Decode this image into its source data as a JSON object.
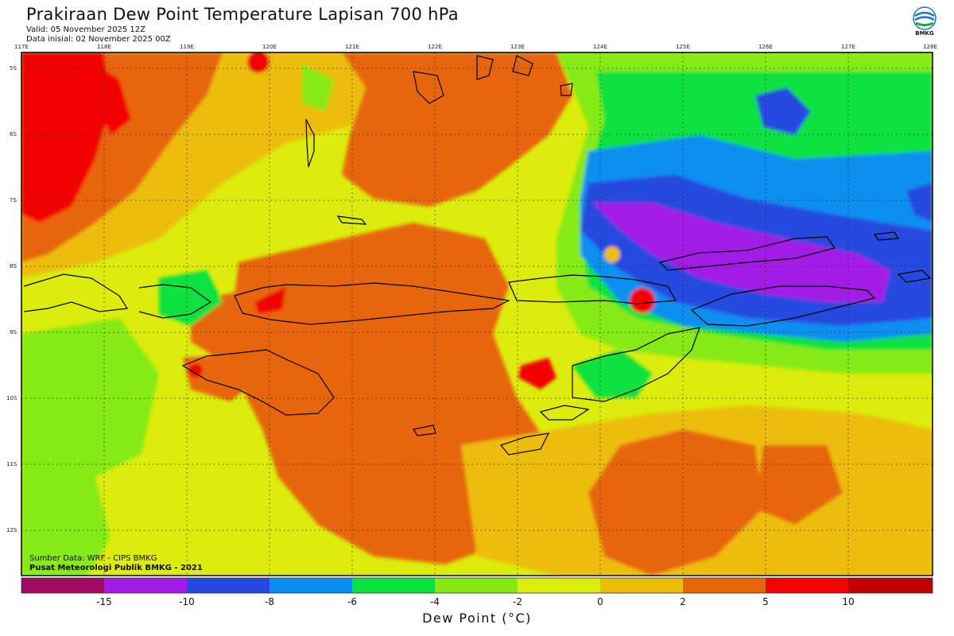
{
  "header": {
    "title": "Prakiraan Dew Point Temperature Lapisan 700 hPa",
    "valid": "Valid: 05 November 2025 12Z",
    "initial": "Data inisial: 02 November 2025 00Z"
  },
  "logo": {
    "text": "BMKG",
    "icon": "bmkg-logo-icon"
  },
  "map": {
    "lon_labels": [
      "117E",
      "118E",
      "119E",
      "120E",
      "121E",
      "122E",
      "123E",
      "124E",
      "125E",
      "126E",
      "127E",
      "128E"
    ],
    "lat_labels": [
      "5S",
      "6S",
      "7S",
      "8S",
      "9S",
      "10S",
      "11S",
      "12S"
    ]
  },
  "footer": {
    "source": "Sumber Data: WRF - CIPS BMKG",
    "publisher": "Pusat Meteorologi Publik BMKG - 2021"
  },
  "legend": {
    "title": "Dew Point (°C)",
    "colors": [
      "#a0095f",
      "#a31be6",
      "#2549e0",
      "#0a8ff0",
      "#07e23f",
      "#86ea12",
      "#dcec0c",
      "#ecbd08",
      "#e7660a",
      "#f20405",
      "#c10004"
    ],
    "ticks": [
      "-15",
      "-10",
      "-8",
      "-6",
      "-4",
      "-2",
      "0",
      "2",
      "5",
      "10"
    ]
  }
}
